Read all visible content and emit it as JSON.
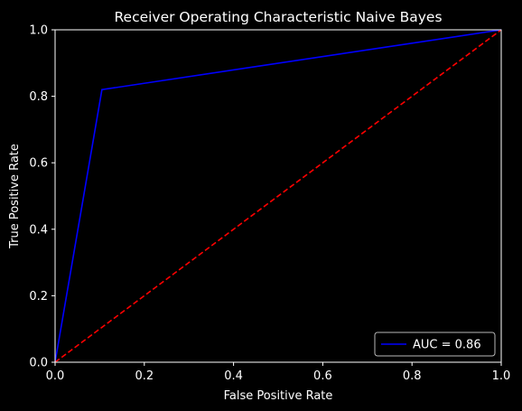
{
  "chart_data": {
    "type": "line",
    "title": "Receiver Operating Characteristic Naive Bayes",
    "xlabel": "False Positive Rate",
    "ylabel": "True Positive Rate",
    "xlim": [
      0,
      1
    ],
    "ylim": [
      0,
      1
    ],
    "x_ticks": [
      "0.0",
      "0.2",
      "0.4",
      "0.6",
      "0.8",
      "1.0"
    ],
    "y_ticks": [
      "0.0",
      "0.2",
      "0.4",
      "0.6",
      "0.8",
      "1.0"
    ],
    "grid": false,
    "background": "#000000",
    "legend_position": "lower right",
    "series": [
      {
        "name": "AUC = 0.86",
        "color": "#0000ff",
        "style": "solid",
        "x": [
          0.0,
          0.105,
          1.0
        ],
        "y": [
          0.0,
          0.82,
          1.0
        ]
      },
      {
        "color": "#ff0000",
        "style": "dashed",
        "x": [
          0.0,
          1.0
        ],
        "y": [
          0.0,
          1.0
        ]
      }
    ]
  }
}
